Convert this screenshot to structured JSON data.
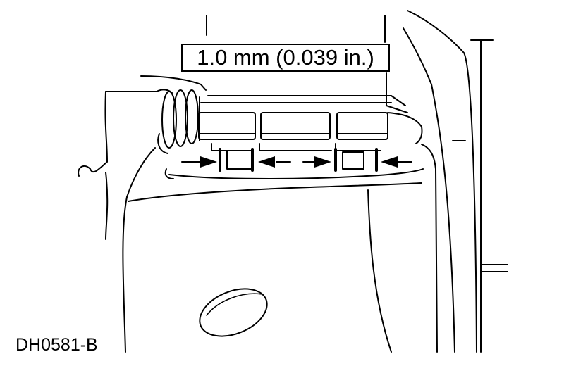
{
  "diagram": {
    "callout_label": "1.0 mm (0.039 in.)",
    "figure_id": "DH0581-B"
  }
}
